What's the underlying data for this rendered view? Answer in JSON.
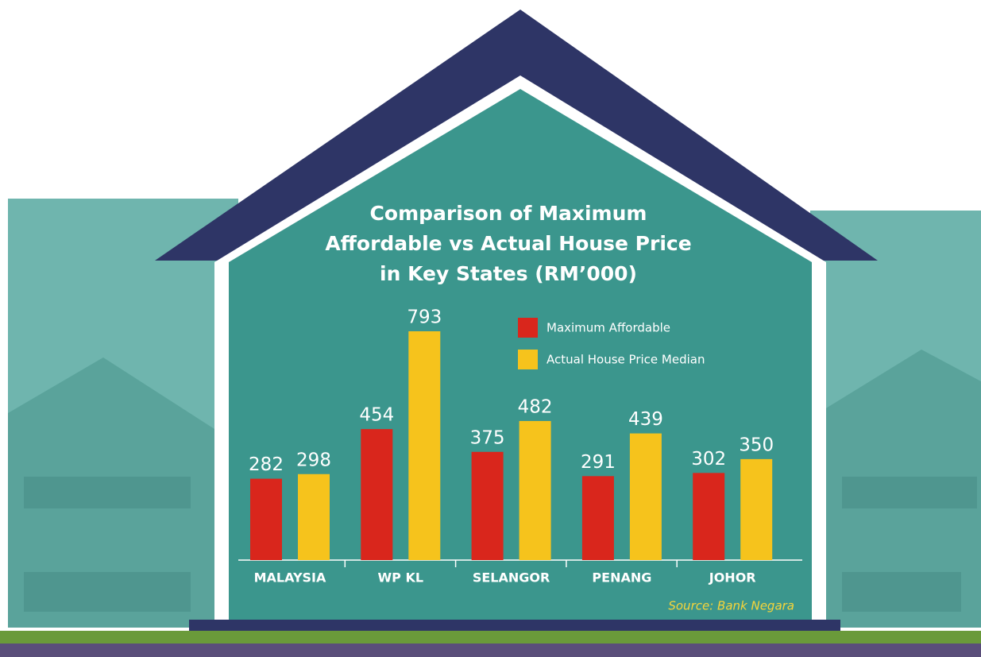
{
  "chart_data": {
    "type": "bar",
    "title": "Comparison of Maximum Affordable vs Actual House Price in Key States (RM’000)",
    "categories": [
      "MALAYSIA",
      "WP KL",
      "SELANGOR",
      "PENANG",
      "JOHOR"
    ],
    "series": [
      {
        "name": "Maximum Affordable",
        "color": "#d9261c",
        "values": [
          282,
          454,
          375,
          291,
          302
        ]
      },
      {
        "name": "Actual House Price Median",
        "color": "#f6c31c",
        "values": [
          298,
          793,
          482,
          439,
          350
        ]
      }
    ],
    "source": "Source: Bank Negara"
  }
}
